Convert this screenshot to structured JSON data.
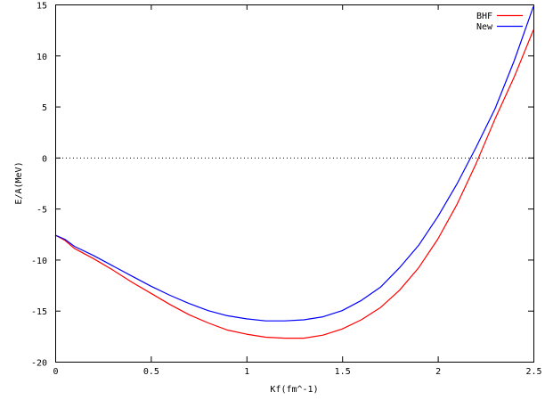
{
  "chart_data": {
    "type": "line",
    "xlabel": "Kf(fm^-1)",
    "ylabel": "E/A(MeV)",
    "xlim": [
      0,
      2.5
    ],
    "ylim": [
      -20,
      15
    ],
    "xticks": [
      0,
      0.5,
      1,
      1.5,
      2,
      2.5
    ],
    "xtick_labels": [
      "0",
      "0.5",
      "1",
      "1.5",
      "2",
      "2.5"
    ],
    "yticks": [
      -20,
      -15,
      -10,
      -5,
      0,
      5,
      10,
      15
    ],
    "ytick_labels": [
      "-20",
      "-15",
      "-10",
      "-5",
      "0",
      "5",
      "10",
      "15"
    ],
    "zero_line": "dotted",
    "grid": false,
    "legend_position": "top-right",
    "series": [
      {
        "name": "BHF",
        "color": "#ff0000",
        "x": [
          0,
          0.05,
          0.1,
          0.2,
          0.3,
          0.4,
          0.5,
          0.6,
          0.7,
          0.8,
          0.9,
          1.0,
          1.1,
          1.2,
          1.3,
          1.4,
          1.5,
          1.6,
          1.7,
          1.8,
          1.9,
          2.0,
          2.1,
          2.2,
          2.3,
          2.4,
          2.5
        ],
        "y": [
          -7.6,
          -8.1,
          -8.9,
          -9.9,
          -11.0,
          -12.2,
          -13.3,
          -14.4,
          -15.4,
          -16.2,
          -16.9,
          -17.3,
          -17.6,
          -17.7,
          -17.7,
          -17.4,
          -16.8,
          -15.9,
          -14.7,
          -13.0,
          -10.8,
          -8.0,
          -4.6,
          -0.6,
          3.8,
          7.9,
          12.5
        ]
      },
      {
        "name": "New",
        "color": "#0000ff",
        "x": [
          0,
          0.05,
          0.1,
          0.2,
          0.3,
          0.4,
          0.5,
          0.6,
          0.7,
          0.8,
          0.9,
          1.0,
          1.1,
          1.2,
          1.3,
          1.4,
          1.5,
          1.6,
          1.7,
          1.8,
          1.9,
          2.0,
          2.1,
          2.2,
          2.3,
          2.4,
          2.5
        ],
        "y": [
          -7.6,
          -8.0,
          -8.7,
          -9.6,
          -10.6,
          -11.6,
          -12.6,
          -13.5,
          -14.3,
          -15.0,
          -15.5,
          -15.8,
          -16.0,
          -16.0,
          -15.9,
          -15.6,
          -15.0,
          -14.0,
          -12.7,
          -10.8,
          -8.6,
          -5.8,
          -2.6,
          1.0,
          4.8,
          9.5,
          14.8
        ]
      }
    ]
  }
}
